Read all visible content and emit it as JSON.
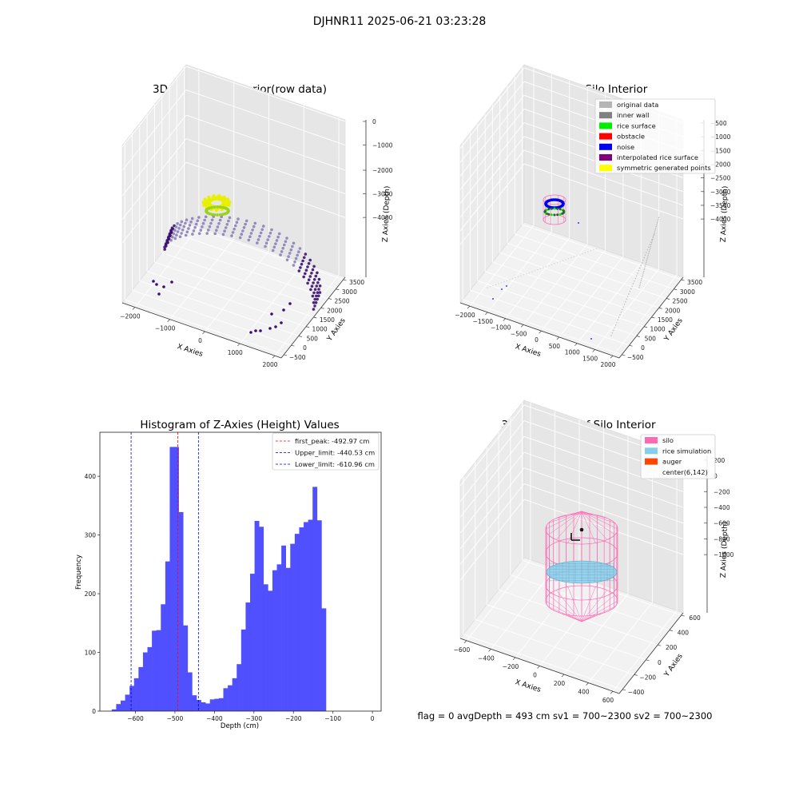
{
  "figure": {
    "suptitle": "DJHNR11 2025-06-21 03:23:28",
    "status_line": "flag = 0     avgDepth = 493 cm  sv1 = 700~2300  sv2 = 700~2300"
  },
  "chart_data": [
    {
      "id": "raw",
      "type": "scatter",
      "title": "3D Plot of Silo Interior(row data)",
      "xlabel": "X Axies",
      "ylabel": "Y Axies",
      "zlabel": "Z Axies (Depth)",
      "xticks": [
        "−2000",
        "−1000",
        "0",
        "1000",
        "2000"
      ],
      "yticks": [
        "−500",
        "0",
        "500",
        "1000",
        "1500",
        "2000",
        "2500",
        "3000",
        "3500"
      ],
      "zticks": [
        "0",
        "−1000",
        "−2000",
        "−3000",
        "−4000"
      ],
      "xlim": [
        -2200,
        2300
      ],
      "ylim": [
        -700,
        3600
      ],
      "zlim": [
        -4500,
        200
      ],
      "point_colormap": [
        "#3b0f70",
        "#8c7fb8",
        "#b8b4d8"
      ],
      "cluster_colors": [
        "#e8f000",
        "#9ad21c"
      ]
    },
    {
      "id": "classify",
      "type": "scatter",
      "title": "3D classify of Silo Interior",
      "xlabel": "X Axies",
      "ylabel": "Y Axies",
      "zlabel": "Z Axies (Depth)",
      "xticks": [
        "−2000",
        "−1500",
        "−1000",
        "−500",
        "0",
        "500",
        "1000",
        "1500",
        "2000"
      ],
      "yticks": [
        "−500",
        "0",
        "500",
        "1000",
        "1500",
        "2000",
        "2500",
        "3000",
        "3500"
      ],
      "zticks": [
        "−500",
        "−1000",
        "−1500",
        "−2000",
        "−2500",
        "−3000",
        "−3500",
        "−4000"
      ],
      "legend": [
        {
          "label": "original data",
          "color": "#b4b4b4"
        },
        {
          "label": "inner wall",
          "color": "#808080"
        },
        {
          "label": "rice surface",
          "color": "#00ee00"
        },
        {
          "label": "obstacle",
          "color": "#ff0000"
        },
        {
          "label": "noise",
          "color": "#0000ee"
        },
        {
          "label": "interpolated rice surface",
          "color": "#800080"
        },
        {
          "label": "symmetric generated points",
          "color": "#ffff00"
        }
      ],
      "legend_loc": "upper right"
    },
    {
      "id": "hist",
      "type": "bar",
      "title": "Histogram of Z-Axies (Height) Values",
      "xlabel": "Depth (cm)",
      "ylabel": "Frequency",
      "xticks": [
        "−600",
        "−500",
        "−400",
        "−300",
        "−200",
        "−100",
        "0"
      ],
      "yticks": [
        "0",
        "100",
        "200",
        "300",
        "400"
      ],
      "xlim": [
        -690,
        22
      ],
      "ylim": [
        0,
        475
      ],
      "bar_color": "#4d4dff",
      "bin_start": -660,
      "bin_width": 11.3,
      "counts": [
        3,
        12,
        18,
        28,
        43,
        56,
        75,
        100,
        109,
        137,
        138,
        182,
        255,
        450,
        450,
        339,
        146,
        66,
        27,
        19,
        15,
        13,
        20,
        21,
        22,
        39,
        44,
        56,
        80,
        139,
        185,
        234,
        324,
        314,
        216,
        205,
        240,
        250,
        282,
        244,
        285,
        302,
        313,
        322,
        326,
        382,
        325,
        175,
        0
      ],
      "vlines": [
        {
          "label": "first_peak: -492.97 cm",
          "value": -492.97,
          "color": "#ff0000"
        },
        {
          "label": "Upper_limit: -440.53 cm",
          "value": -440.53,
          "color": "#0000cc"
        },
        {
          "label": "Lower_limit: -610.96 cm",
          "value": -610.96,
          "color": "#0000cc"
        }
      ],
      "legend_loc": "upper right"
    },
    {
      "id": "sim",
      "type": "scatter",
      "title": "3D simulation of Silo Interior",
      "xlabel": "X Axies",
      "ylabel": "Y Axies",
      "zlabel": "Z Axies (Depth)",
      "xticks": [
        "−600",
        "−400",
        "−200",
        "0",
        "200",
        "400",
        "600"
      ],
      "yticks": [
        "−400",
        "−200",
        "0",
        "200",
        "400",
        "600"
      ],
      "zticks": [
        "200",
        "0",
        "−200",
        "−400",
        "−600",
        "−800",
        "−1000"
      ],
      "legend": [
        {
          "label": "silo",
          "color": "#ff69b4"
        },
        {
          "label": "rice simulation",
          "color": "#87ceeb"
        },
        {
          "label": "auger",
          "color": "#ff4500"
        },
        {
          "label": "center(6,142)",
          "color": ""
        }
      ],
      "legend_loc": "upper right"
    }
  ]
}
